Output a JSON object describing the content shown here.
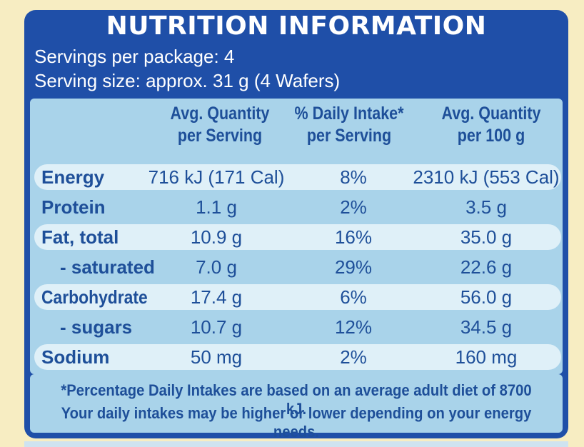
{
  "panel": {
    "title": "NUTRITION INFORMATION",
    "servings_per_package": "Servings per package: 4",
    "serving_size": "Serving size: approx. 31 g (4 Wafers)"
  },
  "columns": {
    "per_serving": [
      "Avg. Quantity",
      "per Serving"
    ],
    "daily_intake": [
      "% Daily Intake*",
      "per Serving"
    ],
    "per_100g": [
      "Avg. Quantity",
      "per 100 g"
    ]
  },
  "rows": [
    {
      "label": "Energy",
      "per_serving": "716 kJ (171 Cal)",
      "daily_intake": "8%",
      "per_100g": "2310 kJ (553 Cal)"
    },
    {
      "label": "Protein",
      "per_serving": "1.1 g",
      "daily_intake": "2%",
      "per_100g": "3.5 g"
    },
    {
      "label": "Fat, total",
      "per_serving": "10.9 g",
      "daily_intake": "16%",
      "per_100g": "35.0 g"
    },
    {
      "label": "- saturated",
      "per_serving": "7.0 g",
      "daily_intake": "29%",
      "per_100g": "22.6 g"
    },
    {
      "label": "Carbohydrate",
      "per_serving": "17.4 g",
      "daily_intake": "6%",
      "per_100g": "56.0 g"
    },
    {
      "label": "- sugars",
      "per_serving": "10.7 g",
      "daily_intake": "12%",
      "per_100g": "34.5 g"
    },
    {
      "label": "Sodium",
      "per_serving": "50 mg",
      "daily_intake": "2%",
      "per_100g": "160 mg"
    }
  ],
  "footnote": {
    "line1": "*Percentage Daily Intakes are based on an average adult diet of 8700 kJ.",
    "line2": "Your daily intakes may be higher or lower depending on your energy needs."
  },
  "colors": {
    "panel_blue": "#1f4fa8",
    "table_light_blue": "#a9d3ea",
    "row_highlight": "#dff0f8",
    "text_blue": "#1e4f99",
    "package_cream": "#f7edc2"
  }
}
